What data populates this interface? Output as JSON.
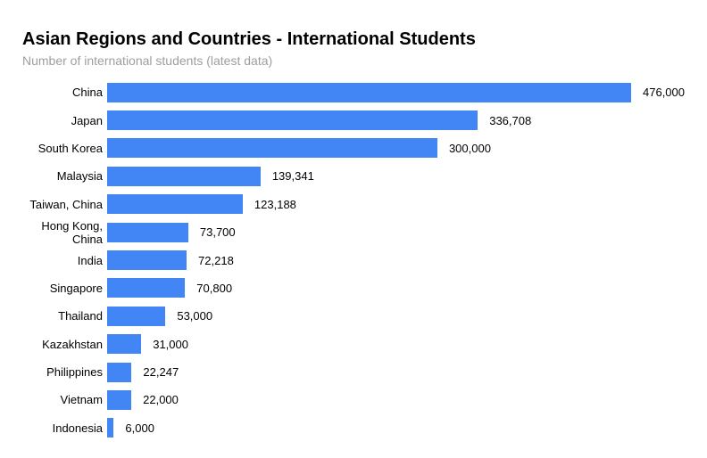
{
  "chart_data": {
    "type": "bar",
    "orientation": "horizontal",
    "title": "Asian Regions and Countries - International Students",
    "subtitle": "Number of international students (latest data)",
    "categories": [
      "China",
      "Japan",
      "South Korea",
      "Malaysia",
      "Taiwan, China",
      "Hong Kong, China",
      "India",
      "Singapore",
      "Thailand",
      "Kazakhstan",
      "Philippines",
      "Vietnam",
      "Indonesia"
    ],
    "values": [
      476000,
      336708,
      300000,
      139341,
      123188,
      73700,
      72218,
      70800,
      53000,
      31000,
      22247,
      22000,
      6000
    ],
    "value_labels": [
      "476,000",
      "336,708",
      "300,000",
      "139,341",
      "123,188",
      "73,700",
      "72,218",
      "70,800",
      "53,000",
      "31,000",
      "22,247",
      "22,000",
      "6,000"
    ],
    "xlim": [
      0,
      476000
    ],
    "xlabel": "",
    "ylabel": "",
    "legend": "none",
    "grid": false,
    "axes_visible": false,
    "annotations_position": "bar-end",
    "bar_color": "#4285f4",
    "title_color": "#000000",
    "subtitle_color": "#9e9e9e",
    "category_label_color": "#000000",
    "value_label_color": "#000000",
    "background_color": "#ffffff"
  }
}
